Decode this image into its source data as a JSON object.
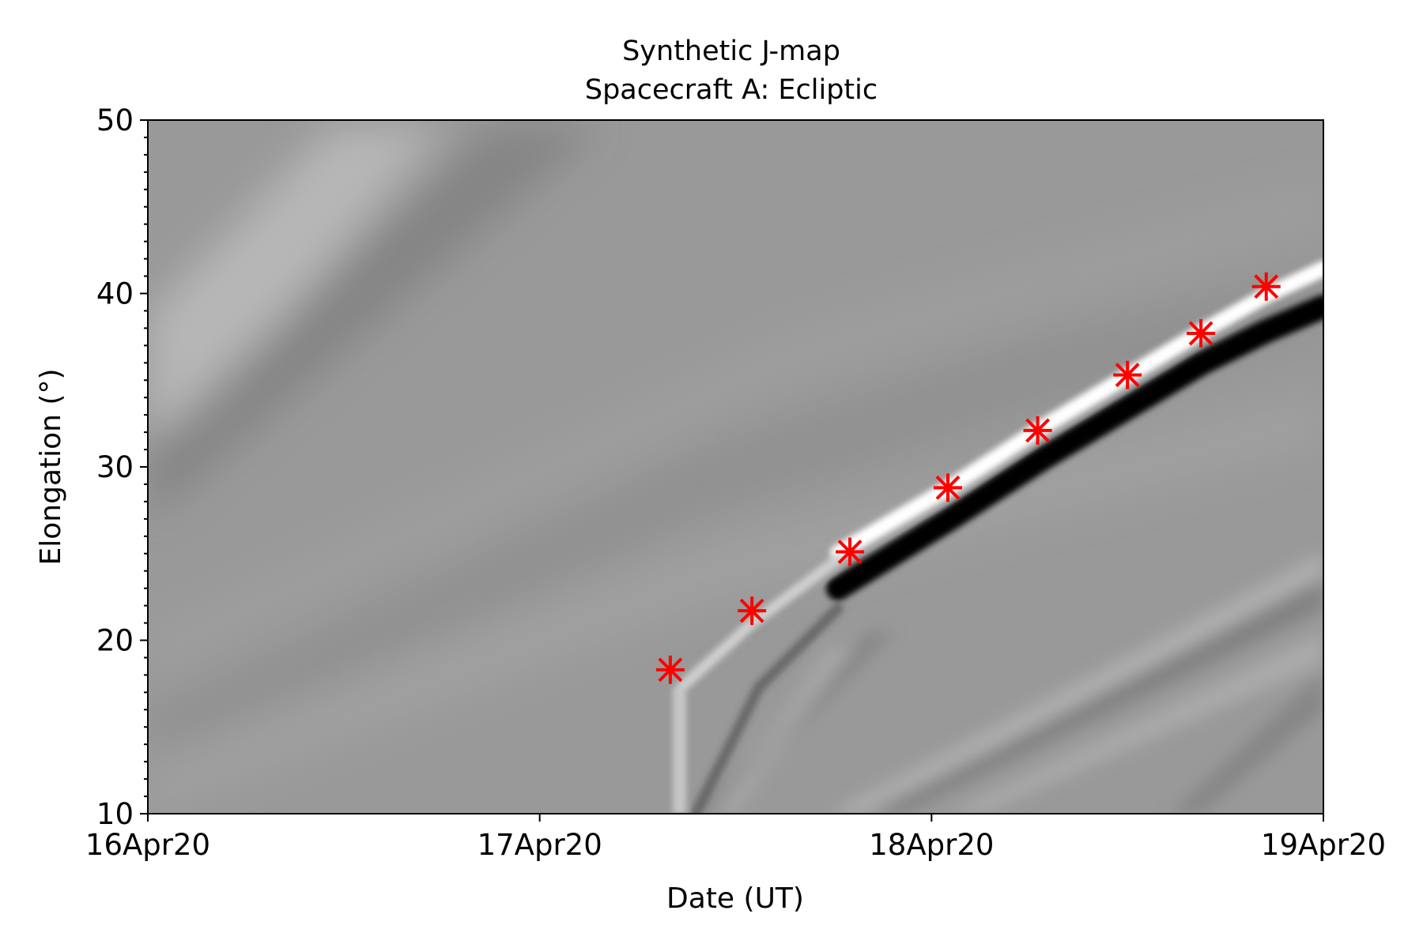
{
  "chart_data": {
    "type": "heatmap",
    "title": "Synthetic J-map",
    "subtitle": "Spacecraft A: Ecliptic",
    "xlabel": "Date (UT)",
    "ylabel": "Elongation (°)",
    "x_ticks": [
      "16Apr20",
      "17Apr20",
      "18Apr20",
      "19Apr20"
    ],
    "x_range": [
      "2020-04-16T00:00",
      "2020-04-19T00:00"
    ],
    "ylim": [
      10,
      50
    ],
    "y_ticks": [
      10,
      20,
      30,
      40,
      50
    ],
    "y_minor_step": 1,
    "colormap": "grayscale",
    "marker_color": "#ff0000",
    "marker_symbol": "asterisk",
    "markers": [
      {
        "x": "2020-04-17T08:00",
        "y": 18.3
      },
      {
        "x": "2020-04-17T13:00",
        "y": 21.7
      },
      {
        "x": "2020-04-17T19:00",
        "y": 25.1
      },
      {
        "x": "2020-04-18T01:00",
        "y": 28.8
      },
      {
        "x": "2020-04-18T06:30",
        "y": 32.1
      },
      {
        "x": "2020-04-18T12:00",
        "y": 35.3
      },
      {
        "x": "2020-04-18T16:30",
        "y": 37.7
      },
      {
        "x": "2020-04-18T20:30",
        "y": 40.4
      }
    ]
  }
}
